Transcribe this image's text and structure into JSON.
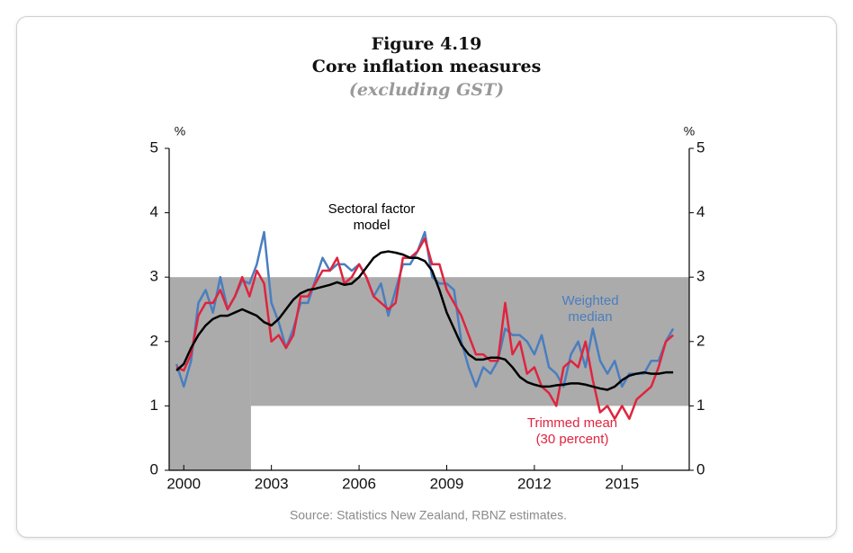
{
  "chart_data": {
    "type": "line",
    "title": "Figure 4.19",
    "subtitle": "Core inflation measures",
    "note": "(excluding GST)",
    "y_unit": "%",
    "y2_unit": "%",
    "source": "Source: Statistics New Zealand, RBNZ estimates.",
    "xlim": [
      1999.5,
      2017.3
    ],
    "xticks": [
      2000,
      2003,
      2006,
      2009,
      2012,
      2015
    ],
    "ylim": [
      0,
      5
    ],
    "yticks": [
      0,
      1,
      2,
      3,
      4,
      5
    ],
    "y2lim": [
      0,
      5
    ],
    "y2ticks": [
      0,
      1,
      2,
      3,
      4,
      5
    ],
    "target_band": {
      "color": "#ababab",
      "regions": [
        {
          "x": [
            1999.5,
            2002.3
          ],
          "y": [
            0,
            3
          ]
        },
        {
          "x": [
            2002.3,
            2017.3
          ],
          "y": [
            1,
            3
          ]
        }
      ]
    },
    "x": [
      1999.75,
      2000,
      2000.25,
      2000.5,
      2000.75,
      2001,
      2001.25,
      2001.5,
      2001.75,
      2002,
      2002.25,
      2002.5,
      2002.75,
      2003,
      2003.25,
      2003.5,
      2003.75,
      2004,
      2004.25,
      2004.5,
      2004.75,
      2005,
      2005.25,
      2005.5,
      2005.75,
      2006,
      2006.25,
      2006.5,
      2006.75,
      2007,
      2007.25,
      2007.5,
      2007.75,
      2008,
      2008.25,
      2008.5,
      2008.75,
      2009,
      2009.25,
      2009.5,
      2009.75,
      2010,
      2010.25,
      2010.5,
      2010.75,
      2011,
      2011.25,
      2011.5,
      2011.75,
      2012,
      2012.25,
      2012.5,
      2012.75,
      2013,
      2013.25,
      2013.5,
      2013.75,
      2014,
      2014.25,
      2014.5,
      2014.75,
      2015,
      2015.25,
      2015.5,
      2015.75,
      2016,
      2016.25,
      2016.5,
      2016.75
    ],
    "series": [
      {
        "name": "Weighted median",
        "color": "#4a7ebf",
        "values": [
          1.65,
          1.3,
          1.7,
          2.6,
          2.8,
          2.45,
          3.0,
          2.5,
          2.7,
          2.95,
          2.9,
          3.2,
          3.7,
          2.6,
          2.3,
          1.9,
          2.2,
          2.6,
          2.6,
          2.95,
          3.3,
          3.1,
          3.2,
          3.2,
          3.1,
          3.2,
          3.0,
          2.7,
          2.9,
          2.4,
          2.8,
          3.2,
          3.2,
          3.4,
          3.7,
          3.0,
          2.9,
          2.9,
          2.8,
          2.0,
          1.6,
          1.3,
          1.6,
          1.5,
          1.7,
          2.2,
          2.1,
          2.1,
          2.0,
          1.8,
          2.1,
          1.6,
          1.5,
          1.3,
          1.8,
          2.0,
          1.6,
          2.2,
          1.7,
          1.5,
          1.7,
          1.3,
          1.5,
          1.5,
          1.5,
          1.7,
          1.7,
          2.0,
          2.2
        ]
      },
      {
        "name": "Trimmed mean (30 percent)",
        "color": "#e0243e",
        "values": [
          1.6,
          1.55,
          1.8,
          2.4,
          2.6,
          2.6,
          2.8,
          2.5,
          2.7,
          3.0,
          2.7,
          3.1,
          2.9,
          2.0,
          2.1,
          1.9,
          2.1,
          2.7,
          2.7,
          2.9,
          3.1,
          3.1,
          3.3,
          2.9,
          3.0,
          3.2,
          3.0,
          2.7,
          2.6,
          2.5,
          2.6,
          3.3,
          3.3,
          3.4,
          3.6,
          3.2,
          3.2,
          2.8,
          2.6,
          2.4,
          2.1,
          1.8,
          1.8,
          1.7,
          1.7,
          2.6,
          1.8,
          2.0,
          1.5,
          1.6,
          1.3,
          1.2,
          1.0,
          1.6,
          1.7,
          1.6,
          2.0,
          1.4,
          0.9,
          1.0,
          0.8,
          1.0,
          0.8,
          1.1,
          1.2,
          1.3,
          1.6,
          2.0,
          2.1
        ]
      },
      {
        "name": "Sectoral factor model",
        "color": "#000000",
        "values": [
          1.55,
          1.65,
          1.9,
          2.1,
          2.25,
          2.35,
          2.4,
          2.4,
          2.45,
          2.5,
          2.45,
          2.4,
          2.3,
          2.25,
          2.35,
          2.5,
          2.65,
          2.75,
          2.8,
          2.82,
          2.85,
          2.88,
          2.92,
          2.88,
          2.9,
          3.0,
          3.15,
          3.3,
          3.38,
          3.4,
          3.38,
          3.35,
          3.3,
          3.3,
          3.25,
          3.1,
          2.8,
          2.45,
          2.2,
          1.95,
          1.8,
          1.72,
          1.72,
          1.75,
          1.75,
          1.72,
          1.6,
          1.45,
          1.37,
          1.33,
          1.3,
          1.3,
          1.32,
          1.33,
          1.35,
          1.35,
          1.33,
          1.3,
          1.27,
          1.25,
          1.3,
          1.4,
          1.47,
          1.5,
          1.52,
          1.5,
          1.5,
          1.52,
          1.52
        ]
      }
    ],
    "annotations": [
      {
        "lines": [
          "Sectoral factor",
          "model"
        ],
        "color": "#000000"
      },
      {
        "lines": [
          "Weighted",
          "median"
        ],
        "color": "#4a7ebf"
      },
      {
        "lines": [
          "Trimmed mean",
          "(30 percent)"
        ],
        "color": "#e0243e"
      }
    ]
  }
}
